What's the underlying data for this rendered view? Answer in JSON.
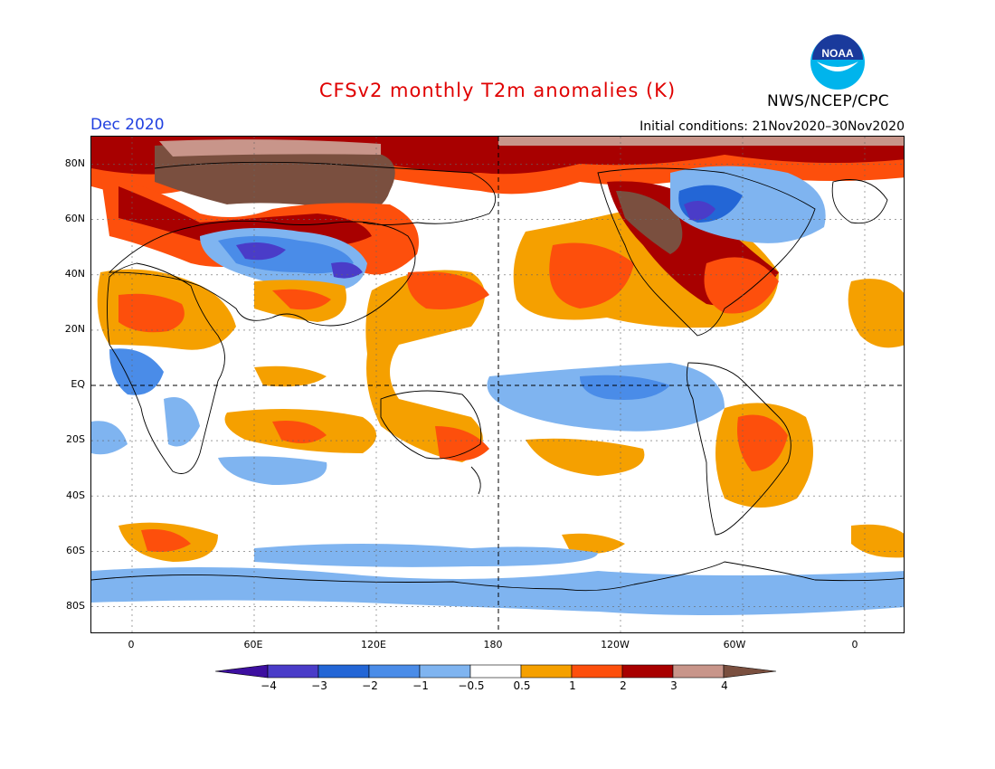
{
  "header": {
    "title": "CFSv2 monthly T2m anomalies (K)",
    "month": "Dec 2020",
    "initial_conditions": "Initial conditions: 21Nov2020–30Nov2020",
    "agency": "NWS/NCEP/CPC",
    "logo_text": "NOAA"
  },
  "axes": {
    "lat_labels": [
      "80N",
      "60N",
      "40N",
      "20N",
      "EQ",
      "20S",
      "40S",
      "60S",
      "80S"
    ],
    "lon_labels": [
      "0",
      "60E",
      "120E",
      "180",
      "120W",
      "60W",
      "0"
    ]
  },
  "colorbar": {
    "labels": [
      "−4",
      "−3",
      "−2",
      "−1",
      "−0.5",
      "0.5",
      "1",
      "2",
      "3",
      "4"
    ],
    "colors": [
      "#3d0fa0",
      "#4a3cc8",
      "#2366d6",
      "#4a8ce8",
      "#7fb4f0",
      "#ffffff",
      "#f5a000",
      "#fd4f0c",
      "#a80000",
      "#c8958a",
      "#7a4f3f"
    ]
  },
  "map": {
    "projection": "equirectangular",
    "lon_range": [
      "-20",
      "380"
    ],
    "lat_range": [
      "-90",
      "90"
    ],
    "field": "2m temperature anomaly (K)"
  }
}
